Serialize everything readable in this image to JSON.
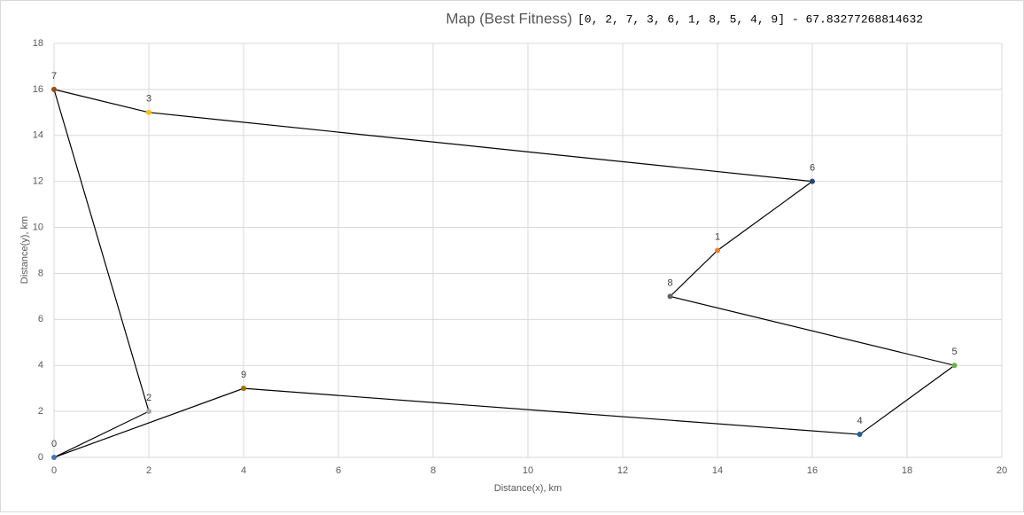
{
  "chart_data": {
    "type": "scatter",
    "title": "Map (Best Fitness)",
    "route_label": "[0, 2, 7, 3, 6, 1, 8, 5, 4, 9] - 67.83277268814632",
    "x_label": "Distance(x), km",
    "y_label": "Distance(y), km",
    "points": {
      "labels": [
        "0",
        "1",
        "2",
        "3",
        "4",
        "5",
        "6",
        "7",
        "8",
        "9"
      ],
      "x": [
        0,
        14,
        2,
        2,
        17,
        19,
        16,
        0,
        13,
        4
      ],
      "y": [
        0,
        9,
        2,
        15,
        1,
        4,
        12,
        16,
        7,
        3
      ],
      "colors": [
        "#4472c4",
        "#ed7d31",
        "#a5a5a5",
        "#ffc000",
        "#255e91",
        "#70ad47",
        "#264478",
        "#9e480e",
        "#636363",
        "#997300"
      ]
    },
    "route": {
      "color": "#000000",
      "x": [
        0,
        2,
        0,
        2,
        16,
        14,
        13,
        19,
        17,
        4,
        0
      ],
      "y": [
        0,
        2,
        16,
        15,
        12,
        9,
        7,
        4,
        1,
        3,
        0
      ]
    },
    "xlim": [
      0,
      20
    ],
    "ylim": [
      0,
      18
    ],
    "xticks": [
      0,
      2,
      4,
      6,
      8,
      10,
      12,
      14,
      16,
      18,
      20
    ],
    "yticks": [
      0,
      2,
      4,
      6,
      8,
      10,
      12,
      14,
      16,
      18
    ],
    "grid": true
  }
}
